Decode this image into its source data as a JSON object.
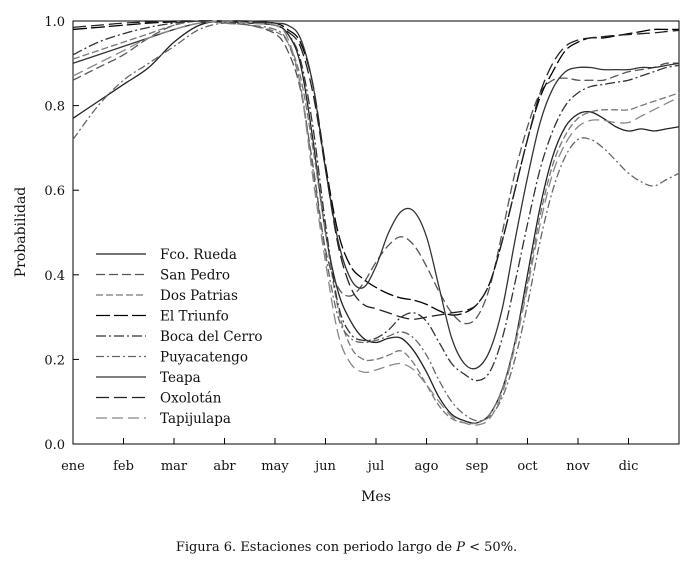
{
  "chart_data": {
    "type": "line",
    "title": "",
    "xlabel": "Mes",
    "ylabel": "Probabilidad",
    "xlim": [
      0,
      12
    ],
    "ylim": [
      0,
      1.0
    ],
    "yticks": [
      0.0,
      0.2,
      0.4,
      0.6,
      0.8,
      1.0
    ],
    "ytick_labels": [
      "0.0",
      "0.2",
      "0.4",
      "0.6",
      "0.8",
      "1.0"
    ],
    "categories": [
      "ene",
      "feb",
      "mar",
      "abr",
      "may",
      "jun",
      "jul",
      "ago",
      "sep",
      "oct",
      "nov",
      "dic"
    ],
    "x": [
      0,
      0.5,
      1,
      1.5,
      2,
      2.5,
      3,
      3.5,
      4,
      4.25,
      4.5,
      4.75,
      5,
      5.25,
      5.5,
      5.75,
      6,
      6.25,
      6.5,
      6.75,
      7,
      7.25,
      7.5,
      7.75,
      8,
      8.25,
      8.5,
      8.75,
      9,
      9.25,
      9.5,
      9.75,
      10,
      10.25,
      10.5,
      10.75,
      11,
      11.25,
      11.5,
      11.75,
      12
    ],
    "legend_position": "left-middle",
    "series": [
      {
        "name": "Fco. Rueda",
        "dash": "solid",
        "color": "#222222",
        "values": [
          0.77,
          0.81,
          0.85,
          0.89,
          0.95,
          0.99,
          1.0,
          0.995,
          0.99,
          0.97,
          0.9,
          0.72,
          0.5,
          0.36,
          0.29,
          0.25,
          0.24,
          0.25,
          0.25,
          0.22,
          0.17,
          0.11,
          0.07,
          0.055,
          0.05,
          0.07,
          0.13,
          0.24,
          0.4,
          0.56,
          0.68,
          0.75,
          0.78,
          0.785,
          0.77,
          0.75,
          0.74,
          0.745,
          0.74,
          0.745,
          0.75
        ]
      },
      {
        "name": "San Pedro",
        "dash": "9,4",
        "color": "#555555",
        "values": [
          0.86,
          0.89,
          0.92,
          0.96,
          0.99,
          1.0,
          0.995,
          0.99,
          0.97,
          0.93,
          0.84,
          0.66,
          0.46,
          0.37,
          0.35,
          0.38,
          0.43,
          0.47,
          0.49,
          0.47,
          0.42,
          0.36,
          0.31,
          0.285,
          0.3,
          0.37,
          0.5,
          0.64,
          0.75,
          0.83,
          0.86,
          0.865,
          0.86,
          0.86,
          0.86,
          0.87,
          0.88,
          0.885,
          0.89,
          0.9,
          0.9
        ]
      },
      {
        "name": "Dos Patrias",
        "dash": "7,3",
        "color": "#777777",
        "values": [
          0.91,
          0.93,
          0.95,
          0.97,
          0.99,
          1.0,
          0.995,
          0.99,
          0.975,
          0.95,
          0.87,
          0.7,
          0.5,
          0.32,
          0.23,
          0.2,
          0.2,
          0.21,
          0.22,
          0.19,
          0.14,
          0.09,
          0.06,
          0.05,
          0.05,
          0.07,
          0.13,
          0.24,
          0.38,
          0.54,
          0.66,
          0.73,
          0.77,
          0.785,
          0.79,
          0.79,
          0.79,
          0.8,
          0.81,
          0.82,
          0.83
        ]
      },
      {
        "name": "El Triunfo",
        "dash": "14,4",
        "color": "#000000",
        "values": [
          0.98,
          0.985,
          0.99,
          0.995,
          0.998,
          1.0,
          1.0,
          0.998,
          0.995,
          0.98,
          0.95,
          0.85,
          0.66,
          0.5,
          0.42,
          0.39,
          0.37,
          0.355,
          0.345,
          0.34,
          0.33,
          0.315,
          0.305,
          0.31,
          0.33,
          0.38,
          0.48,
          0.6,
          0.72,
          0.82,
          0.88,
          0.93,
          0.95,
          0.96,
          0.96,
          0.965,
          0.97,
          0.975,
          0.98,
          0.98,
          0.98
        ]
      },
      {
        "name": "Boca del Cerro",
        "dash": "10,3,2,3",
        "color": "#333333",
        "values": [
          0.92,
          0.95,
          0.97,
          0.985,
          0.995,
          1.0,
          0.998,
          0.995,
          0.99,
          0.97,
          0.91,
          0.75,
          0.52,
          0.33,
          0.26,
          0.245,
          0.25,
          0.27,
          0.3,
          0.31,
          0.29,
          0.24,
          0.19,
          0.165,
          0.15,
          0.17,
          0.25,
          0.38,
          0.52,
          0.65,
          0.74,
          0.8,
          0.83,
          0.845,
          0.85,
          0.855,
          0.86,
          0.87,
          0.88,
          0.89,
          0.895
        ]
      },
      {
        "name": "Puyacatengo",
        "dash": "8,3,2,3",
        "color": "#666666",
        "values": [
          0.72,
          0.8,
          0.86,
          0.9,
          0.94,
          0.98,
          0.995,
          0.99,
          0.98,
          0.95,
          0.85,
          0.65,
          0.45,
          0.3,
          0.25,
          0.24,
          0.245,
          0.255,
          0.265,
          0.25,
          0.21,
          0.15,
          0.1,
          0.07,
          0.055,
          0.065,
          0.11,
          0.2,
          0.33,
          0.48,
          0.6,
          0.68,
          0.72,
          0.72,
          0.7,
          0.67,
          0.64,
          0.62,
          0.61,
          0.625,
          0.64
        ]
      },
      {
        "name": "Teapa",
        "dash": "solid",
        "color": "#333333",
        "values": [
          0.9,
          0.92,
          0.94,
          0.96,
          0.98,
          0.995,
          1.0,
          1.0,
          0.995,
          0.99,
          0.96,
          0.85,
          0.65,
          0.48,
          0.39,
          0.37,
          0.42,
          0.5,
          0.55,
          0.55,
          0.49,
          0.37,
          0.25,
          0.19,
          0.18,
          0.22,
          0.32,
          0.48,
          0.63,
          0.76,
          0.84,
          0.88,
          0.89,
          0.89,
          0.885,
          0.885,
          0.885,
          0.89,
          0.89,
          0.895,
          0.9
        ]
      },
      {
        "name": "Oxolotán",
        "dash": "13,5",
        "color": "#222222",
        "values": [
          0.985,
          0.99,
          0.995,
          0.998,
          1.0,
          1.0,
          1.0,
          0.998,
          0.99,
          0.975,
          0.94,
          0.83,
          0.65,
          0.47,
          0.37,
          0.33,
          0.32,
          0.31,
          0.3,
          0.295,
          0.3,
          0.305,
          0.31,
          0.315,
          0.33,
          0.38,
          0.48,
          0.6,
          0.72,
          0.83,
          0.9,
          0.94,
          0.955,
          0.96,
          0.963,
          0.966,
          0.968,
          0.97,
          0.972,
          0.975,
          0.978
        ]
      },
      {
        "name": "Tapijulapa",
        "dash": "11,5",
        "color": "#888888",
        "values": [
          0.87,
          0.9,
          0.93,
          0.96,
          0.98,
          0.995,
          1.0,
          0.995,
          0.99,
          0.96,
          0.85,
          0.63,
          0.43,
          0.26,
          0.19,
          0.17,
          0.175,
          0.185,
          0.19,
          0.175,
          0.14,
          0.1,
          0.065,
          0.05,
          0.045,
          0.06,
          0.12,
          0.23,
          0.37,
          0.52,
          0.64,
          0.71,
          0.75,
          0.765,
          0.765,
          0.76,
          0.76,
          0.775,
          0.79,
          0.805,
          0.82
        ]
      }
    ]
  },
  "caption": {
    "prefix": "Figura 6. Estaciones con periodo largo de ",
    "var": "P",
    "suffix": " < 50%."
  }
}
